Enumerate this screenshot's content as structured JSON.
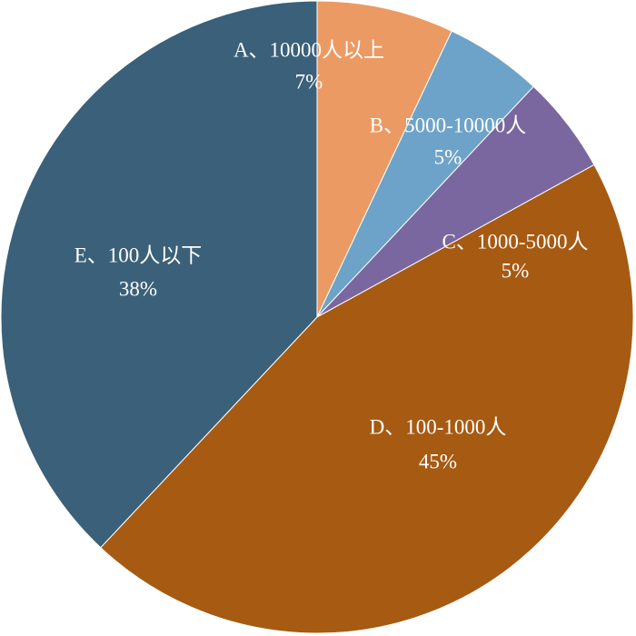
{
  "chart_data": {
    "type": "pie",
    "categories": [
      "A、10000人以上",
      "B、5000-10000人",
      "C、1000-5000人",
      "D、100-1000人",
      "E、100人以下"
    ],
    "values": [
      7,
      5,
      5,
      45,
      38
    ],
    "value_labels": [
      "7%",
      "5%",
      "5%",
      "45%",
      "38%"
    ],
    "colors": [
      "#ec9a63",
      "#6ea3c9",
      "#7a67a0",
      "#a65a12",
      "#3b6079"
    ]
  }
}
